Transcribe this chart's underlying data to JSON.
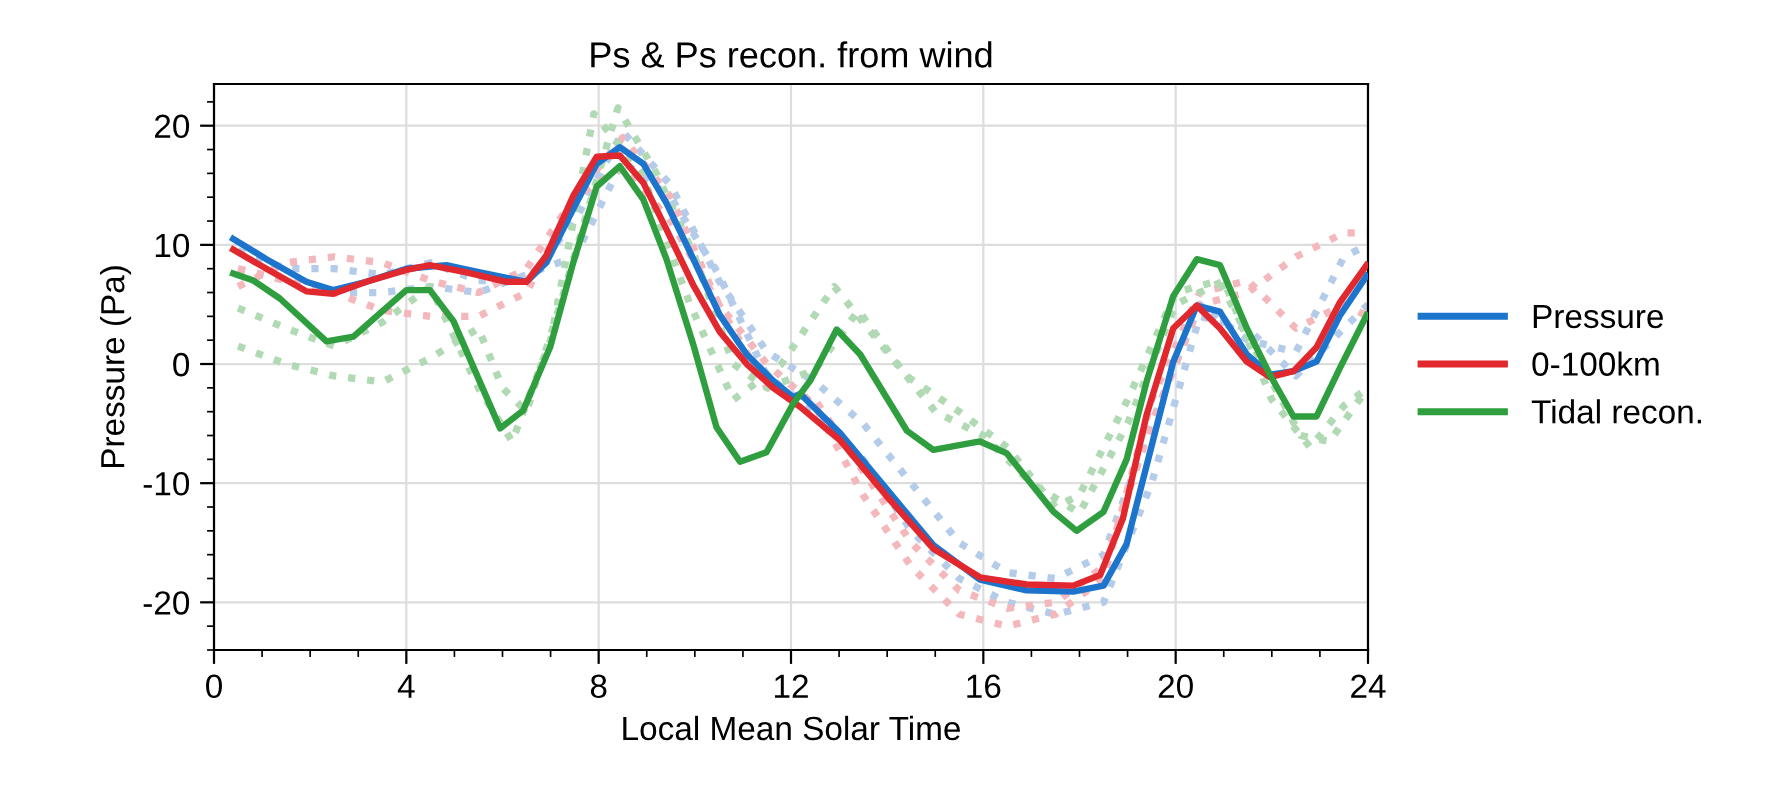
{
  "chart_data": {
    "type": "line",
    "title": "Ps & Ps recon. from wind",
    "xlabel": "Local Mean Solar Time",
    "ylabel": "Pressure (Pa)",
    "xlim": [
      0,
      24
    ],
    "xticks": [
      0,
      4,
      8,
      12,
      16,
      20,
      24
    ],
    "ylim": [
      -24,
      23.5
    ],
    "yticks": [
      -20,
      -10,
      0,
      10,
      20
    ],
    "grid": true,
    "legend": "right",
    "line_style": "solid",
    "series": [
      {
        "color": "#b4cbea",
        "line_style": "dotted",
        "x": [
          0.5,
          1.5,
          2.5,
          3.5,
          4.5,
          5.5,
          6.5,
          7.5,
          8.5,
          9.5,
          10.5,
          11.5,
          12.5,
          13.5,
          14.5,
          15.5,
          16.5,
          17.5,
          18.5,
          19.5,
          20.5,
          21.5,
          22.5,
          23.5,
          24
        ],
        "values": [
          9.5,
          8,
          8,
          7.5,
          8.5,
          7,
          7,
          12,
          19.5,
          15,
          7,
          1,
          -1.5,
          -5,
          -10,
          -15,
          -17.5,
          -18,
          -16,
          -5,
          5,
          2,
          1,
          9,
          10
        ]
      },
      {
        "color": "#b4cbea",
        "line_style": "dotted",
        "x": [
          0.5,
          1.5,
          2.5,
          3.5,
          4.5,
          5.5,
          6.5,
          7.5,
          8.5,
          9.5,
          10.5,
          11.5,
          12.5,
          13.5,
          14.5,
          15.5,
          16.5,
          17.5,
          18.5,
          19.5,
          20.5,
          21.5,
          22.5,
          23.5,
          24
        ],
        "values": [
          8,
          7,
          6,
          6,
          6.5,
          6,
          7.5,
          9,
          17,
          14,
          7.5,
          -1,
          -4,
          -8,
          -14,
          -18,
          -20,
          -21,
          -20,
          -10,
          4,
          3,
          -1,
          3,
          5
        ]
      },
      {
        "color": "#f4b8bc",
        "line_style": "dotted",
        "x": [
          0.5,
          1.5,
          2.5,
          3.5,
          4.5,
          5.5,
          6.5,
          7.5,
          8.5,
          9.5,
          10.5,
          11.5,
          12.5,
          13.5,
          14.5,
          15.5,
          16.5,
          17.5,
          18.5,
          19.5,
          20.5,
          21.5,
          22.5,
          23.5,
          24
        ],
        "values": [
          6.5,
          8.5,
          9,
          8.5,
          7,
          6,
          8,
          14,
          16.5,
          12,
          5,
          -2,
          -3,
          -9,
          -15,
          -19,
          -20.5,
          -20,
          -17,
          -5,
          5,
          6,
          9,
          11,
          11
        ]
      },
      {
        "color": "#f4b8bc",
        "line_style": "dotted",
        "x": [
          0.5,
          1.5,
          2.5,
          3.5,
          4.5,
          5.5,
          6.5,
          7.5,
          8.5,
          9.5,
          10.5,
          11.5,
          12.5,
          13.5,
          14.5,
          15.5,
          16.5,
          17.5,
          18.5,
          19.5,
          20.5,
          21.5,
          22.5,
          23.5,
          24
        ],
        "values": [
          8,
          7,
          6,
          4.5,
          4,
          4,
          6,
          14,
          19,
          14,
          5,
          0,
          -3.5,
          -11,
          -17,
          -21,
          -22,
          -21,
          -18,
          -3,
          6,
          7,
          3,
          5,
          4
        ]
      },
      {
        "color": "#b0d9b4",
        "line_style": "dotted",
        "x": [
          0.5,
          1.5,
          2.5,
          3.5,
          4.5,
          5.5,
          6.2,
          7,
          7.9,
          8.9,
          9.9,
          10.8,
          11.8,
          12.9,
          14,
          15,
          16,
          17,
          18,
          19,
          20,
          21,
          22,
          22.8,
          23.5,
          24
        ],
        "values": [
          4.7,
          3,
          1.5,
          3.5,
          6.5,
          -2,
          -6.5,
          2,
          21,
          16,
          5,
          -3,
          0,
          6.5,
          1,
          -4,
          -6,
          -10,
          -12.5,
          -5,
          5,
          7,
          -3,
          -7,
          -3.5,
          -2
        ]
      },
      {
        "color": "#b0d9b4",
        "line_style": "dotted",
        "x": [
          0.5,
          1.5,
          2.5,
          3.5,
          4.5,
          5.5,
          6,
          6.5,
          7.2,
          8.4,
          9.2,
          10,
          10.8,
          11.5,
          12.5,
          13.4,
          14.4,
          15.5,
          16.5,
          17.5,
          18,
          19,
          20,
          20.9,
          21.8,
          22.6,
          23.2,
          24
        ],
        "values": [
          1.5,
          0,
          -1,
          -1.5,
          0.5,
          3,
          -2,
          -4,
          5,
          21.5,
          16,
          9,
          0,
          -2,
          -0.5,
          4.5,
          -1,
          -4,
          -7,
          -12,
          -11,
          -3,
          6,
          7,
          0,
          -6,
          -6.5,
          -2
        ]
      },
      {
        "name": "Pressure",
        "color": "#1c74cc",
        "x": [
          0.4,
          1.09,
          1.92,
          2.48,
          3.17,
          4.0,
          4.83,
          5.53,
          6.5,
          6.91,
          7.47,
          7.96,
          8.44,
          8.93,
          9.41,
          9.97,
          10.52,
          11.08,
          11.63,
          12.05,
          12.19,
          13.02,
          13.99,
          14.96,
          15.93,
          16.9,
          17.87,
          18.5,
          18.98,
          19.46,
          19.95,
          20.44,
          20.92,
          21.48,
          21.96,
          22.45,
          22.93,
          23.42,
          23.97
        ],
        "values": [
          10.5,
          8.8,
          6.9,
          6.2,
          6.9,
          8.0,
          8.3,
          7.7,
          6.9,
          8.5,
          13.0,
          16.8,
          18.2,
          16.8,
          13.5,
          8.8,
          4.1,
          0.8,
          -1.4,
          -2.8,
          -2.5,
          -5.8,
          -10.5,
          -15.2,
          -18.1,
          -19.0,
          -19.1,
          -18.6,
          -15.1,
          -7.5,
          0.2,
          4.9,
          4.4,
          0.8,
          -0.9,
          -0.6,
          0.2,
          4.1,
          7.4
        ]
      },
      {
        "name": "0-100km",
        "color": "#e0282e",
        "x": [
          0.4,
          1.09,
          1.92,
          2.48,
          3.17,
          4.0,
          4.49,
          5.25,
          6.08,
          6.5,
          6.91,
          7.47,
          7.96,
          8.44,
          8.93,
          9.41,
          9.97,
          10.52,
          11.08,
          11.63,
          12.05,
          12.19,
          13.02,
          13.99,
          14.96,
          15.93,
          16.9,
          17.87,
          18.43,
          18.9,
          19.4,
          19.95,
          20.44,
          20.92,
          21.48,
          21.96,
          22.45,
          22.93,
          23.42,
          23.97
        ],
        "values": [
          9.6,
          8.0,
          6.1,
          5.9,
          6.9,
          7.9,
          8.3,
          7.7,
          6.9,
          6.9,
          9.1,
          14.1,
          17.4,
          17.5,
          15.2,
          11.3,
          6.6,
          2.7,
          0.0,
          -2.0,
          -3.2,
          -3.6,
          -6.4,
          -11.1,
          -15.5,
          -17.9,
          -18.5,
          -18.6,
          -17.7,
          -13.0,
          -4.2,
          3.0,
          4.9,
          3.0,
          0.2,
          -1.1,
          -0.6,
          1.4,
          5.2,
          8.3
        ]
      },
      {
        "name": "Tidal recon.",
        "color": "#2e9e3e",
        "x": [
          0.4,
          0.82,
          1.37,
          2.34,
          2.9,
          4.0,
          4.49,
          4.98,
          5.95,
          6.43,
          6.99,
          7.47,
          7.96,
          8.44,
          8.93,
          9.41,
          9.97,
          10.45,
          10.94,
          11.49,
          12.05,
          12.4,
          12.95,
          13.44,
          14.41,
          14.96,
          15.93,
          16.49,
          17.46,
          17.94,
          18.5,
          18.98,
          19.4,
          19.95,
          20.44,
          20.92,
          21.48,
          21.96,
          22.45,
          22.93,
          23.42,
          23.97
        ],
        "values": [
          7.6,
          7.0,
          5.5,
          1.9,
          2.3,
          6.2,
          6.2,
          3.6,
          -5.4,
          -3.9,
          1.4,
          8.5,
          14.9,
          16.6,
          13.8,
          8.8,
          1.6,
          -5.3,
          -8.2,
          -7.4,
          -3.3,
          -1.4,
          2.9,
          0.8,
          -5.6,
          -7.2,
          -6.5,
          -7.5,
          -12.4,
          -14.0,
          -12.4,
          -8.0,
          -1.4,
          5.7,
          8.8,
          8.3,
          3.0,
          -0.9,
          -4.4,
          -4.4,
          -0.3,
          4.1
        ]
      }
    ]
  }
}
